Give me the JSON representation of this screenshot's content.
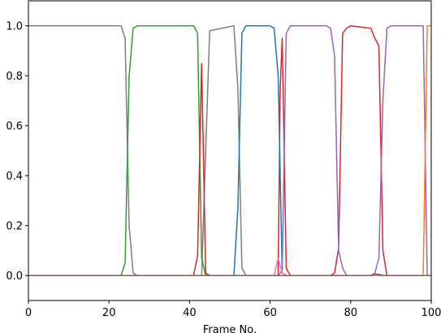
{
  "chart_data": {
    "type": "line",
    "title": "",
    "xlabel": "Frame No.",
    "ylabel": "",
    "xlim": [
      0,
      100
    ],
    "ylim": [
      -0.1,
      1.1
    ],
    "grid": false,
    "legend": "none",
    "x_ticks": [
      0,
      20,
      40,
      60,
      80,
      100
    ],
    "x_tick_labels": [
      "0",
      "20",
      "40",
      "60",
      "80",
      "100"
    ],
    "y_ticks": [
      0.0,
      0.2,
      0.4,
      0.6,
      0.8,
      1.0
    ],
    "y_tick_labels": [
      "0.0",
      "0.2",
      "0.4",
      "0.6",
      "0.8",
      "1.0"
    ],
    "series": [
      {
        "color": "#7f7f7f",
        "x": [
          0,
          23,
          24,
          25,
          26,
          27,
          43,
          44,
          45,
          51,
          52,
          53,
          54,
          62,
          63,
          100
        ],
        "y": [
          1,
          1,
          0.95,
          0.2,
          0.01,
          0,
          0,
          0.5,
          0.98,
          1,
          0.75,
          0.03,
          0,
          0,
          0,
          0
        ]
      },
      {
        "color": "#2ca02c",
        "x": [
          0,
          23,
          24,
          25,
          26,
          27,
          41,
          42,
          43,
          44,
          45,
          100
        ],
        "y": [
          0,
          0,
          0.05,
          0.8,
          0.99,
          1,
          1,
          0.97,
          0.07,
          0,
          0,
          0
        ]
      },
      {
        "color": "#d62728",
        "x": [
          0,
          41,
          42,
          43,
          44,
          45,
          62,
          62.5,
          63,
          64,
          65,
          75,
          76,
          77,
          78,
          79,
          80,
          85,
          86,
          87,
          88,
          89,
          100
        ],
        "y": [
          0,
          0,
          0.08,
          0.85,
          0.01,
          0,
          0,
          0.75,
          0.95,
          0.03,
          0,
          0,
          0.01,
          0.11,
          0.97,
          0.99,
          1,
          0.99,
          0.95,
          0.92,
          0.1,
          0,
          0
        ]
      },
      {
        "color": "#1f77b4",
        "x": [
          0,
          51,
          52,
          53,
          54,
          55,
          60,
          61,
          62,
          63,
          64,
          100
        ],
        "y": [
          0,
          0,
          0.27,
          0.97,
          1,
          1,
          1,
          0.99,
          0.8,
          0.01,
          0,
          0
        ]
      },
      {
        "color": "#9467bd",
        "x": [
          0,
          62,
          63,
          64,
          65,
          66,
          73,
          74,
          75,
          76,
          77,
          78,
          79,
          85,
          86,
          87,
          88,
          89,
          90,
          97,
          98,
          99,
          100
        ],
        "y": [
          0,
          0,
          0.02,
          0.97,
          1,
          1,
          1,
          1,
          0.99,
          0.88,
          0.1,
          0.03,
          0,
          0,
          0.01,
          0.07,
          0.7,
          0.99,
          1,
          1,
          1,
          0,
          0
        ]
      },
      {
        "color": "#e377c2",
        "x": [
          0,
          61,
          62,
          63,
          64,
          100
        ],
        "y": [
          0,
          0,
          0.07,
          0.01,
          0,
          0
        ]
      },
      {
        "color": "#ff7f0e",
        "x": [
          0,
          98,
          99,
          100
        ],
        "y": [
          0,
          0,
          1,
          1
        ]
      },
      {
        "color": "#8c564b",
        "x": [
          0,
          85,
          86,
          87,
          88,
          100
        ],
        "y": [
          0,
          0,
          0.005,
          0.005,
          0,
          0
        ]
      }
    ]
  }
}
